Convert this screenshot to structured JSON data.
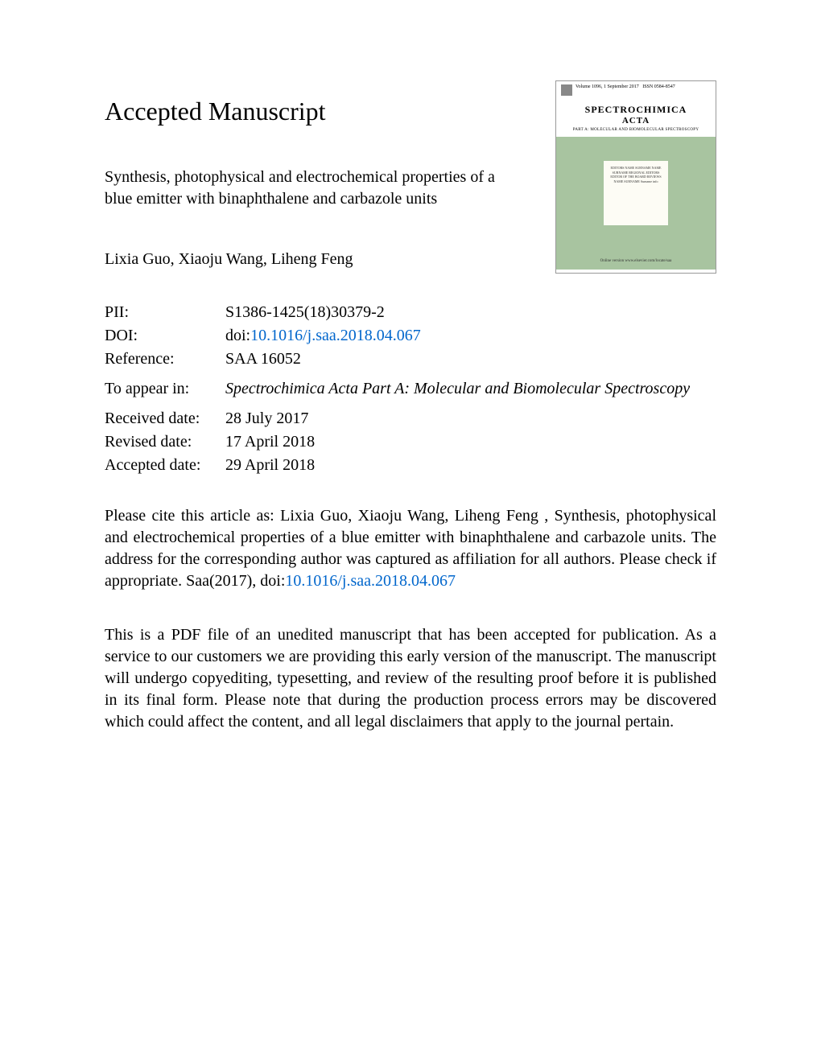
{
  "heading": "Accepted Manuscript",
  "article_title": "Synthesis, photophysical and electrochemical properties of a blue emitter with binaphthalene and carbazole units",
  "authors": "Lixia Guo, Xiaoju Wang, Liheng Feng",
  "metadata": {
    "pii_label": "PII:",
    "pii_value": "S1386-1425(18)30379-2",
    "doi_label": "DOI:",
    "doi_prefix": "doi:",
    "doi_link": "10.1016/j.saa.2018.04.067",
    "reference_label": "Reference:",
    "reference_value": "SAA 16052",
    "to_appear_label": "To appear in:",
    "to_appear_value": "Spectrochimica Acta Part A: Molecular and Biomolecular Spectroscopy",
    "received_label": "Received date:",
    "received_value": "28 July 2017",
    "revised_label": "Revised date:",
    "revised_value": "17 April 2018",
    "accepted_label": "Accepted date:",
    "accepted_value": "29 April 2018"
  },
  "citation": {
    "text_before": "Please cite this article as: Lixia Guo, Xiaoju Wang, Liheng Feng , Synthesis, photophysical and electrochemical properties of a blue emitter with binaphthalene and carbazole units. The address for the corresponding author was captured as affiliation for all authors. Please check if appropriate. Saa(2017), doi:",
    "link": "10.1016/j.saa.2018.04.067"
  },
  "disclaimer": "This is a PDF file of an unedited manuscript that has been accepted for publication. As a service to our customers we are providing this early version of the manuscript. The manuscript will undergo copyediting, typesetting, and review of the resulting proof before it is published in its final form. Please note that during the production process errors may be discovered which could affect the content, and all legal disclaimers that apply to the journal pertain.",
  "journal_cover": {
    "volume_info": "Volume 1096, 1 September 2017",
    "issn": "ISSN 0584-8547",
    "title_line1": "SPECTROCHIMICA",
    "title_line2": "ACTA",
    "subtitle": "PART A: MOLECULAR AND BIOMOLECULAR SPECTROSCOPY",
    "panel_text": "EDITORS\nNAME SURNAME\nNAME SURNAME\n\nREGIONAL EDITORS\nEDITOR OF THE BOARD\n\nREVIEWS\nNAME SURNAME\nSurname info",
    "footer": "Online version www.elsevier.com/locate/saa"
  },
  "colors": {
    "link_color": "#0066cc",
    "journal_green": "#a8c4a0",
    "journal_panel": "#fdfcf5",
    "text_color": "#000000",
    "background": "#ffffff"
  }
}
